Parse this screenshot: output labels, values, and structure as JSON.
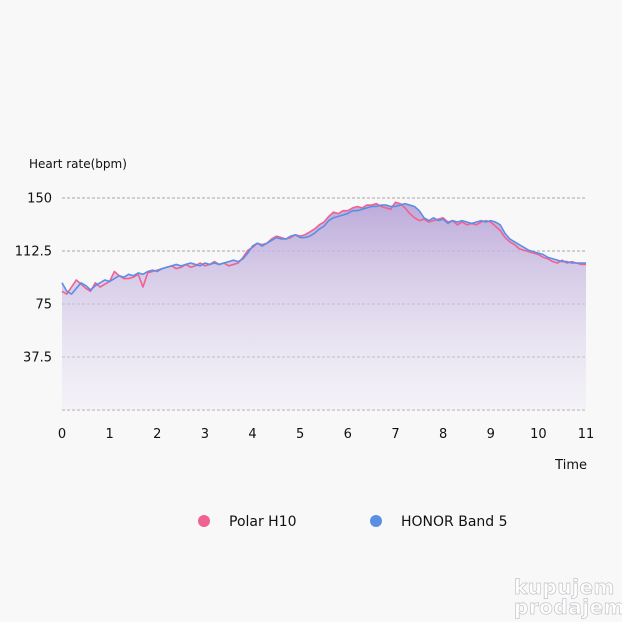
{
  "chart_data": {
    "type": "line",
    "xlabel": "Time",
    "ylabel": "Heart rate(bpm)",
    "xlim": [
      0,
      11
    ],
    "ylim": [
      0,
      150
    ],
    "x_ticks": [
      "0",
      "1",
      "2",
      "3",
      "4",
      "5",
      "6",
      "7",
      "8",
      "9",
      "10",
      "11"
    ],
    "y_ticks": [
      "37.5",
      "75",
      "112.5",
      "150"
    ],
    "grid": "horizontal dashed",
    "legend_position": "bottom",
    "series": [
      {
        "name": "Polar H10",
        "color": "#f06292",
        "x": [
          0,
          0.1,
          0.2,
          0.3,
          0.4,
          0.5,
          0.6,
          0.7,
          0.8,
          0.9,
          1.0,
          1.1,
          1.2,
          1.3,
          1.4,
          1.5,
          1.6,
          1.7,
          1.8,
          1.9,
          2.0,
          2.1,
          2.2,
          2.3,
          2.4,
          2.5,
          2.6,
          2.7,
          2.8,
          2.9,
          3.0,
          3.1,
          3.2,
          3.3,
          3.4,
          3.5,
          3.6,
          3.7,
          3.8,
          3.9,
          4.0,
          4.1,
          4.2,
          4.3,
          4.4,
          4.5,
          4.6,
          4.7,
          4.8,
          4.9,
          5.0,
          5.1,
          5.2,
          5.3,
          5.4,
          5.5,
          5.6,
          5.7,
          5.8,
          5.9,
          6.0,
          6.1,
          6.2,
          6.3,
          6.4,
          6.5,
          6.6,
          6.7,
          6.8,
          6.9,
          7.0,
          7.1,
          7.2,
          7.3,
          7.4,
          7.5,
          7.6,
          7.7,
          7.8,
          7.9,
          8.0,
          8.1,
          8.2,
          8.3,
          8.4,
          8.5,
          8.6,
          8.7,
          8.8,
          8.9,
          9.0,
          9.1,
          9.2,
          9.3,
          9.4,
          9.5,
          9.6,
          9.7,
          9.8,
          9.9,
          10.0,
          10.1,
          10.2,
          10.3,
          10.4,
          10.5,
          10.6,
          10.7,
          10.8,
          10.9,
          11.0
        ],
        "values": [
          84,
          82,
          87,
          92,
          89,
          86,
          84,
          90,
          87,
          89,
          91,
          98,
          95,
          93,
          93,
          94,
          96,
          87,
          97,
          98,
          99,
          100,
          101,
          102,
          100,
          101,
          103,
          101,
          102,
          104,
          102,
          103,
          105,
          103,
          104,
          102,
          103,
          104,
          108,
          113,
          115,
          118,
          117,
          118,
          121,
          123,
          122,
          121,
          122,
          124,
          123,
          124,
          126,
          128,
          131,
          133,
          137,
          140,
          139,
          141,
          141,
          143,
          144,
          143,
          145,
          145,
          146,
          144,
          143,
          142,
          147,
          146,
          143,
          139,
          136,
          134,
          135,
          133,
          134,
          135,
          136,
          133,
          134,
          131,
          133,
          131,
          132,
          131,
          133,
          134,
          133,
          130,
          127,
          122,
          119,
          117,
          114,
          113,
          112,
          111,
          110,
          108,
          107,
          105,
          104,
          106,
          104,
          105,
          104,
          103,
          103
        ]
      },
      {
        "name": "HONOR Band 5",
        "color": "#5b8fe6",
        "x": [
          0,
          0.1,
          0.2,
          0.3,
          0.4,
          0.5,
          0.6,
          0.7,
          0.8,
          0.9,
          1.0,
          1.1,
          1.2,
          1.3,
          1.4,
          1.5,
          1.6,
          1.7,
          1.8,
          1.9,
          2.0,
          2.1,
          2.2,
          2.3,
          2.4,
          2.5,
          2.6,
          2.7,
          2.8,
          2.9,
          3.0,
          3.1,
          3.2,
          3.3,
          3.4,
          3.5,
          3.6,
          3.7,
          3.8,
          3.9,
          4.0,
          4.1,
          4.2,
          4.3,
          4.4,
          4.5,
          4.6,
          4.7,
          4.8,
          4.9,
          5.0,
          5.1,
          5.2,
          5.3,
          5.4,
          5.5,
          5.6,
          5.7,
          5.8,
          5.9,
          6.0,
          6.1,
          6.2,
          6.3,
          6.4,
          6.5,
          6.6,
          6.7,
          6.8,
          6.9,
          7.0,
          7.1,
          7.2,
          7.3,
          7.4,
          7.5,
          7.6,
          7.7,
          7.8,
          7.9,
          8.0,
          8.1,
          8.2,
          8.3,
          8.4,
          8.5,
          8.6,
          8.7,
          8.8,
          8.9,
          9.0,
          9.1,
          9.2,
          9.3,
          9.4,
          9.5,
          9.6,
          9.7,
          9.8,
          9.9,
          10.0,
          10.1,
          10.2,
          10.3,
          10.4,
          10.5,
          10.6,
          10.7,
          10.8,
          10.9,
          11.0
        ],
        "values": [
          90,
          84,
          82,
          86,
          90,
          88,
          85,
          88,
          90,
          92,
          91,
          93,
          95,
          94,
          96,
          95,
          97,
          96,
          98,
          99,
          98,
          100,
          101,
          102,
          103,
          102,
          103,
          104,
          103,
          102,
          104,
          103,
          104,
          103,
          104,
          105,
          106,
          105,
          107,
          111,
          116,
          118,
          116,
          118,
          120,
          122,
          121,
          121,
          123,
          124,
          122,
          122,
          123,
          125,
          128,
          130,
          134,
          136,
          137,
          138,
          139,
          141,
          141,
          142,
          143,
          144,
          144,
          145,
          145,
          144,
          144,
          145,
          146,
          145,
          144,
          141,
          136,
          134,
          136,
          134,
          135,
          132,
          134,
          133,
          134,
          133,
          132,
          133,
          134,
          133,
          134,
          133,
          131,
          125,
          121,
          119,
          117,
          115,
          113,
          112,
          111,
          110,
          108,
          107,
          106,
          105,
          105,
          104,
          104,
          104,
          104
        ]
      }
    ]
  },
  "watermark": {
    "line1": "kupujem",
    "line2": "prodajem"
  }
}
